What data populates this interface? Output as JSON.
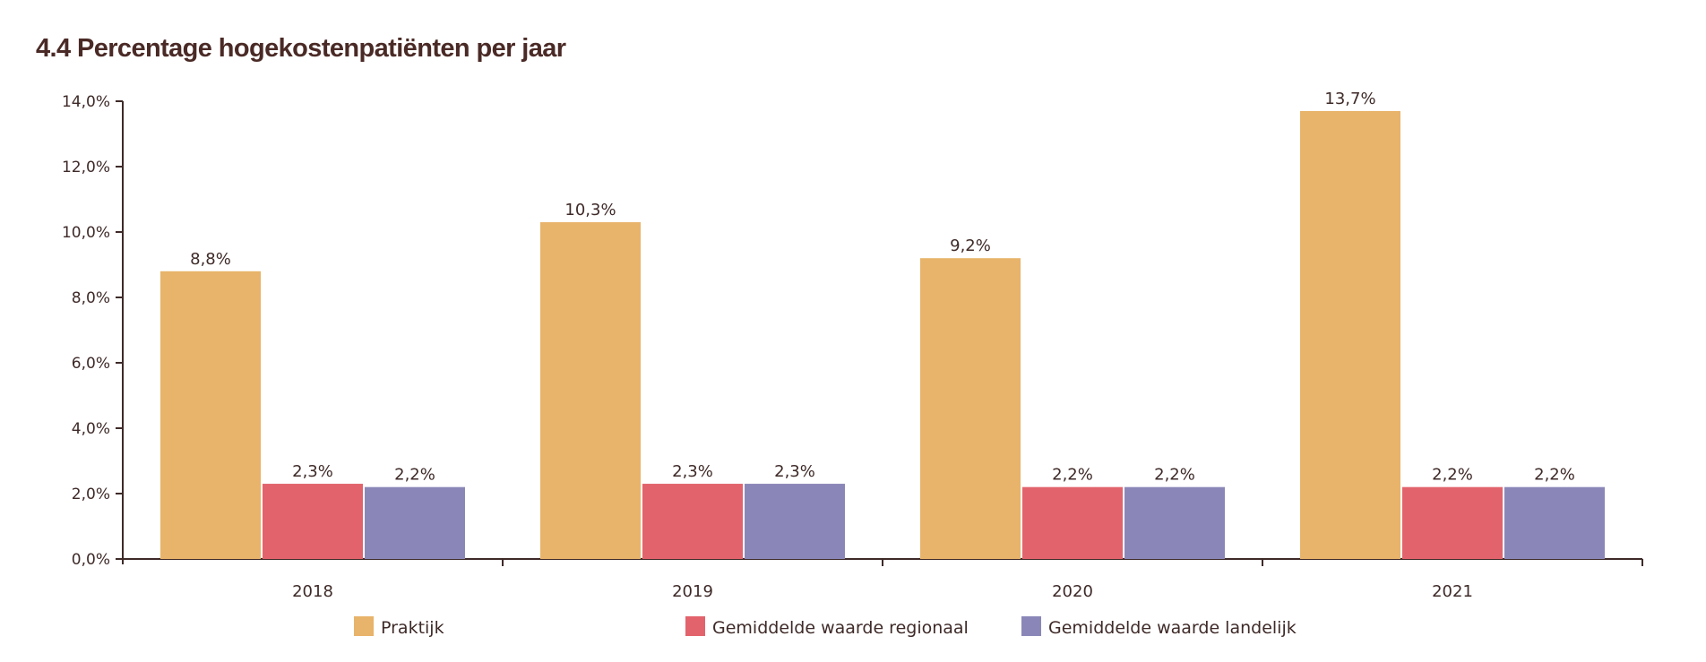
{
  "colors": {
    "title": "#4a2a26",
    "text": "#3e2a28",
    "axis": "#3e2a28",
    "praktijk": "#e8b36a",
    "regionaal": "#e2636c",
    "landelijk": "#8a87b8"
  },
  "chart_data": {
    "type": "bar",
    "title": "4.4 Percentage hogekostenpatiënten per jaar",
    "xlabel": "",
    "ylabel": "",
    "categories": [
      "2018",
      "2019",
      "2020",
      "2021"
    ],
    "series": [
      {
        "name": "Praktijk",
        "color": "#e8b36a",
        "values": [
          8.8,
          10.3,
          9.2,
          13.7
        ],
        "labels": [
          "8,8%",
          "10,3%",
          "9,2%",
          "13,7%"
        ]
      },
      {
        "name": "Gemiddelde waarde regionaal",
        "color": "#e2636c",
        "values": [
          2.3,
          2.3,
          2.2,
          2.2
        ],
        "labels": [
          "2,3%",
          "2,3%",
          "2,2%",
          "2,2%"
        ]
      },
      {
        "name": "Gemiddelde waarde landelijk",
        "color": "#8a87b8",
        "values": [
          2.2,
          2.3,
          2.2,
          2.2
        ],
        "labels": [
          "2,2%",
          "2,3%",
          "2,2%",
          "2,2%"
        ]
      }
    ],
    "ylim": [
      0,
      14
    ],
    "yticks": [
      0,
      2,
      4,
      6,
      8,
      10,
      12,
      14
    ],
    "ytick_labels": [
      "0,0%",
      "2,0%",
      "4,0%",
      "6,0%",
      "8,0%",
      "10,0%",
      "12,0%",
      "14,0%"
    ],
    "grid": false,
    "legend_position": "bottom"
  }
}
